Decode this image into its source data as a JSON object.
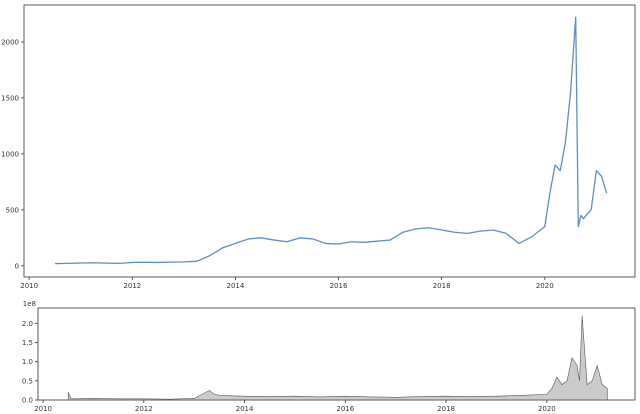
{
  "chart_data": [
    {
      "type": "line",
      "title": "",
      "xlabel": "",
      "ylabel": "",
      "xlim": [
        2009.9,
        2021.75
      ],
      "ylim": [
        -100,
        2330
      ],
      "x_ticks": [
        2010,
        2012,
        2014,
        2016,
        2018,
        2020
      ],
      "y_ticks": [
        0,
        500,
        1000,
        1500,
        2000
      ],
      "x_tick_labels": [
        "2010",
        "2012",
        "2014",
        "2016",
        "2018",
        "2020"
      ],
      "y_tick_labels": [
        "0",
        "500",
        "1000",
        "1500",
        "2000"
      ],
      "grid": false,
      "legend": "none",
      "color": "#5b8ec9",
      "series": [
        {
          "x": [
            2010.5,
            2010.75,
            2011.0,
            2011.25,
            2011.5,
            2011.75,
            2012.0,
            2012.25,
            2012.5,
            2012.75,
            2013.0,
            2013.25,
            2013.5,
            2013.75,
            2014.0,
            2014.25,
            2014.5,
            2014.75,
            2015.0,
            2015.25,
            2015.5,
            2015.75,
            2016.0,
            2016.25,
            2016.5,
            2016.75,
            2017.0,
            2017.25,
            2017.5,
            2017.75,
            2018.0,
            2018.25,
            2018.5,
            2018.75,
            2019.0,
            2019.25,
            2019.5,
            2019.75,
            2020.0,
            2020.1,
            2020.2,
            2020.3,
            2020.4,
            2020.5,
            2020.6,
            2020.65,
            2020.7,
            2020.75,
            2020.8,
            2020.9,
            2021.0,
            2021.1,
            2021.2
          ],
          "y": [
            20,
            22,
            25,
            27,
            24,
            22,
            30,
            32,
            30,
            33,
            35,
            40,
            90,
            160,
            200,
            240,
            250,
            230,
            215,
            250,
            240,
            200,
            195,
            215,
            210,
            220,
            230,
            300,
            330,
            340,
            320,
            300,
            290,
            310,
            320,
            290,
            200,
            260,
            350,
            650,
            900,
            850,
            1100,
            1550,
            2220,
            350,
            450,
            420,
            450,
            500,
            850,
            800,
            650
          ]
        }
      ]
    },
    {
      "type": "area",
      "title": "",
      "xlabel": "",
      "ylabel": "",
      "xlim": [
        2009.9,
        2021.75
      ],
      "ylim": [
        0,
        2.4
      ],
      "y_scale_label": "1e8",
      "x_ticks": [
        2010,
        2012,
        2014,
        2016,
        2018,
        2020
      ],
      "y_ticks": [
        0.0,
        0.5,
        1.0,
        1.5,
        2.0
      ],
      "x_tick_labels": [
        "2010",
        "2012",
        "2014",
        "2016",
        "2018",
        "2020"
      ],
      "y_tick_labels": [
        "0.0",
        "0.5",
        "1.0",
        "1.5",
        "2.0"
      ],
      "grid": false,
      "legend": "none",
      "color": "#a0a0a0",
      "series": [
        {
          "x": [
            2010.5,
            2010.55,
            2010.6,
            2011.0,
            2011.5,
            2012.0,
            2012.5,
            2013.0,
            2013.3,
            2013.4,
            2013.5,
            2014.0,
            2014.5,
            2015.0,
            2015.5,
            2016.0,
            2016.5,
            2017.0,
            2017.5,
            2018.0,
            2018.5,
            2019.0,
            2019.5,
            2020.0,
            2020.1,
            2020.2,
            2020.3,
            2020.4,
            2020.5,
            2020.6,
            2020.65,
            2020.7,
            2020.8,
            2020.9,
            2021.0,
            2021.1,
            2021.2
          ],
          "y": [
            0.2,
            0.05,
            0.03,
            0.04,
            0.03,
            0.03,
            0.02,
            0.04,
            0.25,
            0.15,
            0.12,
            0.1,
            0.09,
            0.1,
            0.08,
            0.1,
            0.08,
            0.07,
            0.09,
            0.1,
            0.09,
            0.1,
            0.12,
            0.15,
            0.3,
            0.6,
            0.4,
            0.5,
            1.1,
            0.9,
            0.5,
            2.2,
            0.4,
            0.5,
            0.9,
            0.4,
            0.3
          ]
        }
      ]
    }
  ]
}
